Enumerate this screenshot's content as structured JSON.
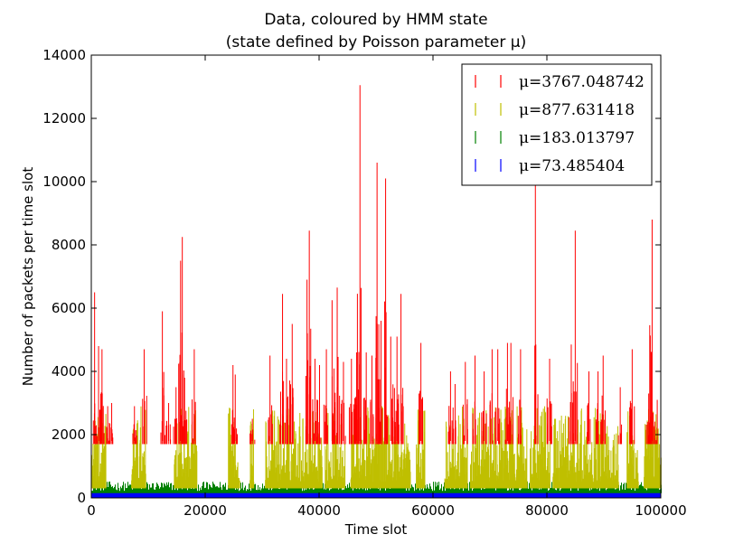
{
  "chart_data": {
    "type": "line",
    "title": "Data, coloured by HMM state",
    "subtitle": "(state defined by Poisson parameter μ)",
    "xlabel": "Time slot",
    "ylabel": "Number of packets per time slot",
    "xlim": [
      0,
      100000
    ],
    "ylim": [
      0,
      14000
    ],
    "x_ticks": [
      "0",
      "20000",
      "40000",
      "60000",
      "80000",
      "100000"
    ],
    "y_ticks": [
      "0",
      "2000",
      "4000",
      "6000",
      "8000",
      "10000",
      "12000",
      "14000"
    ],
    "grid": false,
    "legend_position": "top-right",
    "series": [
      {
        "name": "μ=3767.048742",
        "color": "#ff0000",
        "note_description": "spikes",
        "points": [
          [
            500,
            6500
          ],
          [
            1200,
            4800
          ],
          [
            1800,
            4700
          ],
          [
            2800,
            2900
          ],
          [
            3500,
            3000
          ],
          [
            7500,
            2900
          ],
          [
            9200,
            4700
          ],
          [
            12400,
            5900
          ],
          [
            13500,
            3000
          ],
          [
            14800,
            3500
          ],
          [
            15600,
            7500
          ],
          [
            15900,
            8250
          ],
          [
            16300,
            3800
          ],
          [
            18000,
            4700
          ],
          [
            24800,
            4200
          ],
          [
            25200,
            3900
          ],
          [
            28200,
            2500
          ],
          [
            31300,
            4500
          ],
          [
            33500,
            6450
          ],
          [
            34200,
            4400
          ],
          [
            35200,
            5500
          ],
          [
            37800,
            6900
          ],
          [
            38200,
            8450
          ],
          [
            39200,
            4400
          ],
          [
            40000,
            4200
          ],
          [
            41200,
            4700
          ],
          [
            42200,
            6250
          ],
          [
            43100,
            6650
          ],
          [
            44200,
            4300
          ],
          [
            45600,
            4400
          ],
          [
            46500,
            4600
          ],
          [
            47100,
            13050
          ],
          [
            48200,
            4600
          ],
          [
            49200,
            4500
          ],
          [
            50100,
            10600
          ],
          [
            50800,
            5600
          ],
          [
            51600,
            10100
          ],
          [
            52500,
            5100
          ],
          [
            53600,
            5100
          ],
          [
            54300,
            6450
          ],
          [
            57800,
            4900
          ],
          [
            63000,
            4000
          ],
          [
            63800,
            3600
          ],
          [
            65600,
            4300
          ],
          [
            67300,
            4500
          ],
          [
            68900,
            4000
          ],
          [
            70300,
            4700
          ],
          [
            71300,
            4700
          ],
          [
            73000,
            4900
          ],
          [
            73600,
            4900
          ],
          [
            75300,
            4700
          ],
          [
            77900,
            10050
          ],
          [
            80400,
            4400
          ],
          [
            84200,
            4850
          ],
          [
            84900,
            8450
          ],
          [
            87300,
            4000
          ],
          [
            88900,
            4000
          ],
          [
            89800,
            4500
          ],
          [
            92800,
            3500
          ],
          [
            94900,
            4700
          ],
          [
            97800,
            3300
          ],
          [
            98400,
            8800
          ],
          [
            99300,
            3100
          ]
        ]
      },
      {
        "name": "μ=877.631418",
        "color": "#bfbf00",
        "note_description": "moderate bursts"
      },
      {
        "name": "μ=183.013797",
        "color": "#008000",
        "note_description": "low band"
      },
      {
        "name": "μ=73.485404",
        "color": "#0000ff",
        "note_description": "baseline"
      }
    ]
  }
}
